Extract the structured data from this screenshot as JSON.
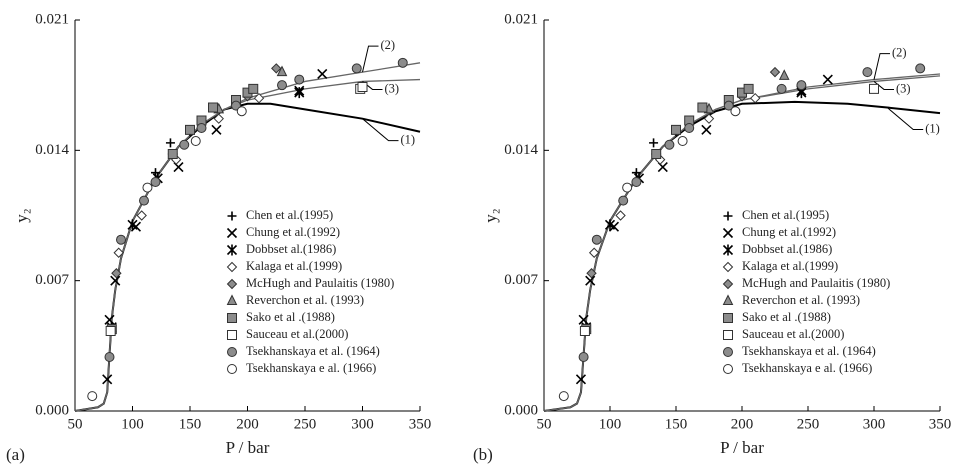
{
  "chart_data": [
    {
      "type": "scatter",
      "panel_label": "(a)",
      "xlabel": "P / bar",
      "ylabel": "y₂",
      "xlim": [
        50,
        350
      ],
      "ylim": [
        0,
        0.021
      ],
      "xticks": [
        50,
        100,
        150,
        200,
        250,
        300,
        350
      ],
      "yticks": [
        {
          "value": 0,
          "label": "0.000"
        },
        0.007,
        0.014,
        0.021
      ],
      "series": [
        {
          "name": "Chen et al.(1995)",
          "marker": "plus",
          "color": "#000000",
          "x": [
            120,
            133,
            150
          ],
          "values": [
            0.0128,
            0.0144,
            0.015
          ]
        },
        {
          "name": "Chung et al.(1992)",
          "marker": "cross",
          "color": "#000000",
          "x": [
            78,
            80,
            85,
            103,
            140,
            173,
            245,
            265
          ],
          "values": [
            0.0017,
            0.0049,
            0.007,
            0.0099,
            0.0131,
            0.0151,
            0.0172,
            0.0181
          ]
        },
        {
          "name": "Dobbset al.(1986)",
          "marker": "star",
          "color": "#000000",
          "x": [
            82,
            100,
            122,
            245
          ],
          "values": [
            0.0045,
            0.01,
            0.0125,
            0.0171
          ]
        },
        {
          "name": "Kalaga et al.(1999)",
          "marker": "diamond-open",
          "color": "#ffffff",
          "x": [
            88,
            108,
            138,
            175,
            210
          ],
          "values": [
            0.0085,
            0.0105,
            0.0135,
            0.0157,
            0.0168
          ]
        },
        {
          "name": "McHugh and Paulaitis (1980)",
          "marker": "diamond",
          "color": "#8c8c8c",
          "x": [
            86,
            135,
            200,
            225
          ],
          "values": [
            0.0074,
            0.0138,
            0.0169,
            0.0184
          ]
        },
        {
          "name": "Reverchon et al. (1993)",
          "marker": "triangle",
          "color": "#8c8c8c",
          "x": [
            175,
            230
          ],
          "values": [
            0.0162,
            0.0182
          ]
        },
        {
          "name": "Sako et al .(1988)",
          "marker": "square",
          "color": "#8c8c8c",
          "x": [
            82,
            135,
            150,
            160,
            170,
            190,
            200,
            205
          ],
          "values": [
            0.0044,
            0.0138,
            0.0151,
            0.0156,
            0.0163,
            0.0167,
            0.0171,
            0.0173
          ]
        },
        {
          "name": "Sauceau et al.(2000)",
          "marker": "square-open",
          "color": "#ffffff",
          "x": [
            81,
            298,
            300
          ],
          "values": [
            0.0043,
            0.0173,
            0.0174
          ]
        },
        {
          "name": "Tsekhanskaya et al. (1964)",
          "marker": "circle",
          "color": "#8c8c8c",
          "x": [
            80,
            90,
            110,
            120,
            145,
            160,
            190,
            230,
            245,
            295,
            335
          ],
          "values": [
            0.0029,
            0.0092,
            0.0113,
            0.0123,
            0.0143,
            0.0152,
            0.0164,
            0.0175,
            0.0178,
            0.0184,
            0.0187
          ]
        },
        {
          "name": "Tsekhanskaya e al. (1966)",
          "marker": "circle-open",
          "color": "#ffffff",
          "x": [
            65,
            113,
            155,
            195
          ],
          "values": [
            0.0008,
            0.012,
            0.0145,
            0.0161
          ]
        }
      ],
      "curves": [
        {
          "name": "(1)",
          "color": "#000000",
          "x": [
            50,
            70,
            75,
            78,
            80,
            82,
            85,
            90,
            100,
            120,
            140,
            160,
            180,
            200,
            220,
            250,
            300,
            350
          ],
          "values": [
            0,
            0.0002,
            0.0004,
            0.001,
            0.003,
            0.005,
            0.0065,
            0.0082,
            0.0102,
            0.0125,
            0.0142,
            0.0153,
            0.0162,
            0.0165,
            0.0165,
            0.0162,
            0.0157,
            0.015
          ]
        },
        {
          "name": "(2)",
          "color": "#666666",
          "x": [
            50,
            70,
            75,
            78,
            80,
            82,
            85,
            90,
            100,
            120,
            140,
            160,
            180,
            200,
            250,
            300,
            350
          ],
          "values": [
            0,
            0.0002,
            0.0004,
            0.001,
            0.003,
            0.005,
            0.0065,
            0.0082,
            0.0102,
            0.0125,
            0.0142,
            0.0154,
            0.0162,
            0.0168,
            0.0177,
            0.0182,
            0.0187
          ]
        },
        {
          "name": "(3)",
          "color": "#666666",
          "x": [
            50,
            70,
            75,
            78,
            80,
            82,
            85,
            90,
            100,
            120,
            140,
            160,
            180,
            200,
            250,
            300,
            350
          ],
          "values": [
            0,
            0.0002,
            0.0004,
            0.001,
            0.003,
            0.005,
            0.0065,
            0.0082,
            0.0102,
            0.0125,
            0.0142,
            0.0154,
            0.0162,
            0.0167,
            0.0173,
            0.0177,
            0.0178
          ]
        }
      ]
    },
    {
      "type": "scatter",
      "panel_label": "(b)",
      "xlabel": "P / bar",
      "ylabel": "y₂",
      "xlim": [
        50,
        350
      ],
      "ylim": [
        0,
        0.021
      ],
      "xticks": [
        50,
        100,
        150,
        200,
        250,
        300,
        350
      ],
      "yticks": [
        {
          "value": 0,
          "label": "0.000"
        },
        0.007,
        0.014,
        0.021
      ],
      "series": [
        {
          "name": "Chen et al.(1995)",
          "marker": "plus",
          "color": "#000000",
          "x": [
            120,
            133,
            150
          ],
          "values": [
            0.0128,
            0.0144,
            0.015
          ]
        },
        {
          "name": "Chung et al.(1992)",
          "marker": "cross",
          "color": "#000000",
          "x": [
            78,
            80,
            85,
            103,
            140,
            173,
            245,
            265
          ],
          "values": [
            0.0017,
            0.0049,
            0.007,
            0.0099,
            0.0131,
            0.0151,
            0.0172,
            0.0178
          ]
        },
        {
          "name": "Dobbset al.(1986)",
          "marker": "star",
          "color": "#000000",
          "x": [
            82,
            100,
            122,
            245
          ],
          "values": [
            0.0045,
            0.01,
            0.0125,
            0.0171
          ]
        },
        {
          "name": "Kalaga et al.(1999)",
          "marker": "diamond-open",
          "color": "#ffffff",
          "x": [
            88,
            108,
            138,
            175,
            210
          ],
          "values": [
            0.0085,
            0.0105,
            0.0135,
            0.0157,
            0.0168
          ]
        },
        {
          "name": "McHugh and Paulaitis (1980)",
          "marker": "diamond",
          "color": "#8c8c8c",
          "x": [
            86,
            135,
            200,
            225
          ],
          "values": [
            0.0074,
            0.0138,
            0.0169,
            0.0182
          ]
        },
        {
          "name": "Reverchon et al. (1993)",
          "marker": "triangle",
          "color": "#8c8c8c",
          "x": [
            175,
            232
          ],
          "values": [
            0.0162,
            0.018
          ]
        },
        {
          "name": "Sako et al .(1988)",
          "marker": "square",
          "color": "#8c8c8c",
          "x": [
            82,
            135,
            150,
            160,
            170,
            190,
            200,
            205
          ],
          "values": [
            0.0044,
            0.0138,
            0.0151,
            0.0156,
            0.0163,
            0.0167,
            0.0171,
            0.0173
          ]
        },
        {
          "name": "Sauceau et al.(2000)",
          "marker": "square-open",
          "color": "#ffffff",
          "x": [
            81,
            300
          ],
          "values": [
            0.0043,
            0.0173
          ]
        },
        {
          "name": "Tsekhanskaya et al. (1964)",
          "marker": "circle",
          "color": "#8c8c8c",
          "x": [
            80,
            90,
            110,
            120,
            145,
            160,
            190,
            230,
            245,
            295,
            335
          ],
          "values": [
            0.0029,
            0.0092,
            0.0113,
            0.0123,
            0.0143,
            0.0152,
            0.0164,
            0.0173,
            0.0175,
            0.0182,
            0.0184
          ]
        },
        {
          "name": "Tsekhanskaya e al. (1966)",
          "marker": "circle-open",
          "color": "#ffffff",
          "x": [
            65,
            113,
            155,
            195
          ],
          "values": [
            0.0008,
            0.012,
            0.0145,
            0.0161
          ]
        }
      ],
      "curves": [
        {
          "name": "(1)",
          "color": "#000000",
          "x": [
            50,
            70,
            75,
            78,
            80,
            82,
            85,
            90,
            100,
            120,
            140,
            160,
            180,
            200,
            240,
            280,
            310,
            350
          ],
          "values": [
            0,
            0.0002,
            0.0004,
            0.001,
            0.003,
            0.005,
            0.0065,
            0.0082,
            0.0102,
            0.0125,
            0.0142,
            0.0153,
            0.0161,
            0.0165,
            0.0166,
            0.0165,
            0.0163,
            0.016
          ]
        },
        {
          "name": "(2)",
          "color": "#666666",
          "x": [
            50,
            70,
            75,
            78,
            80,
            82,
            85,
            90,
            100,
            120,
            140,
            160,
            180,
            200,
            250,
            300,
            350
          ],
          "values": [
            0,
            0.0002,
            0.0004,
            0.001,
            0.003,
            0.005,
            0.0065,
            0.0082,
            0.0102,
            0.0125,
            0.0142,
            0.0154,
            0.0162,
            0.0167,
            0.0174,
            0.0178,
            0.0181
          ]
        },
        {
          "name": "(3)",
          "color": "#666666",
          "x": [
            50,
            70,
            75,
            78,
            80,
            82,
            85,
            90,
            100,
            120,
            140,
            160,
            180,
            200,
            250,
            300,
            350
          ],
          "values": [
            0,
            0.0002,
            0.0004,
            0.001,
            0.003,
            0.005,
            0.0065,
            0.0082,
            0.0102,
            0.0125,
            0.0142,
            0.0154,
            0.0162,
            0.0167,
            0.0173,
            0.0177,
            0.018
          ]
        }
      ]
    }
  ]
}
